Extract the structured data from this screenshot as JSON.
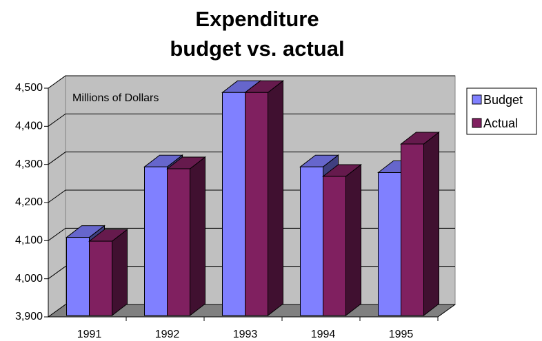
{
  "chart_data": {
    "type": "bar3d",
    "title": [
      "Expenditure",
      "budget vs. actual"
    ],
    "annotation": "Millions of Dollars",
    "categories": [
      "1991",
      "1992",
      "1993",
      "1994",
      "1995"
    ],
    "series": [
      {
        "name": "Budget",
        "color": "#8080ff",
        "values": [
          4105,
          4290,
          4485,
          4290,
          4275
        ]
      },
      {
        "name": "Actual",
        "color": "#802060",
        "values": [
          4095,
          4285,
          4485,
          4265,
          4350
        ]
      }
    ],
    "ylim": [
      3900,
      4500
    ],
    "yticks": [
      {
        "value": 3900,
        "label": "3,900"
      },
      {
        "value": 4000,
        "label": "4,000"
      },
      {
        "value": 4100,
        "label": "4,100"
      },
      {
        "value": 4200,
        "label": "4,200"
      },
      {
        "value": 4300,
        "label": "4,300"
      },
      {
        "value": 4400,
        "label": "4,400"
      },
      {
        "value": 4500,
        "label": "4,500"
      }
    ],
    "grid": true,
    "legend": "right"
  }
}
